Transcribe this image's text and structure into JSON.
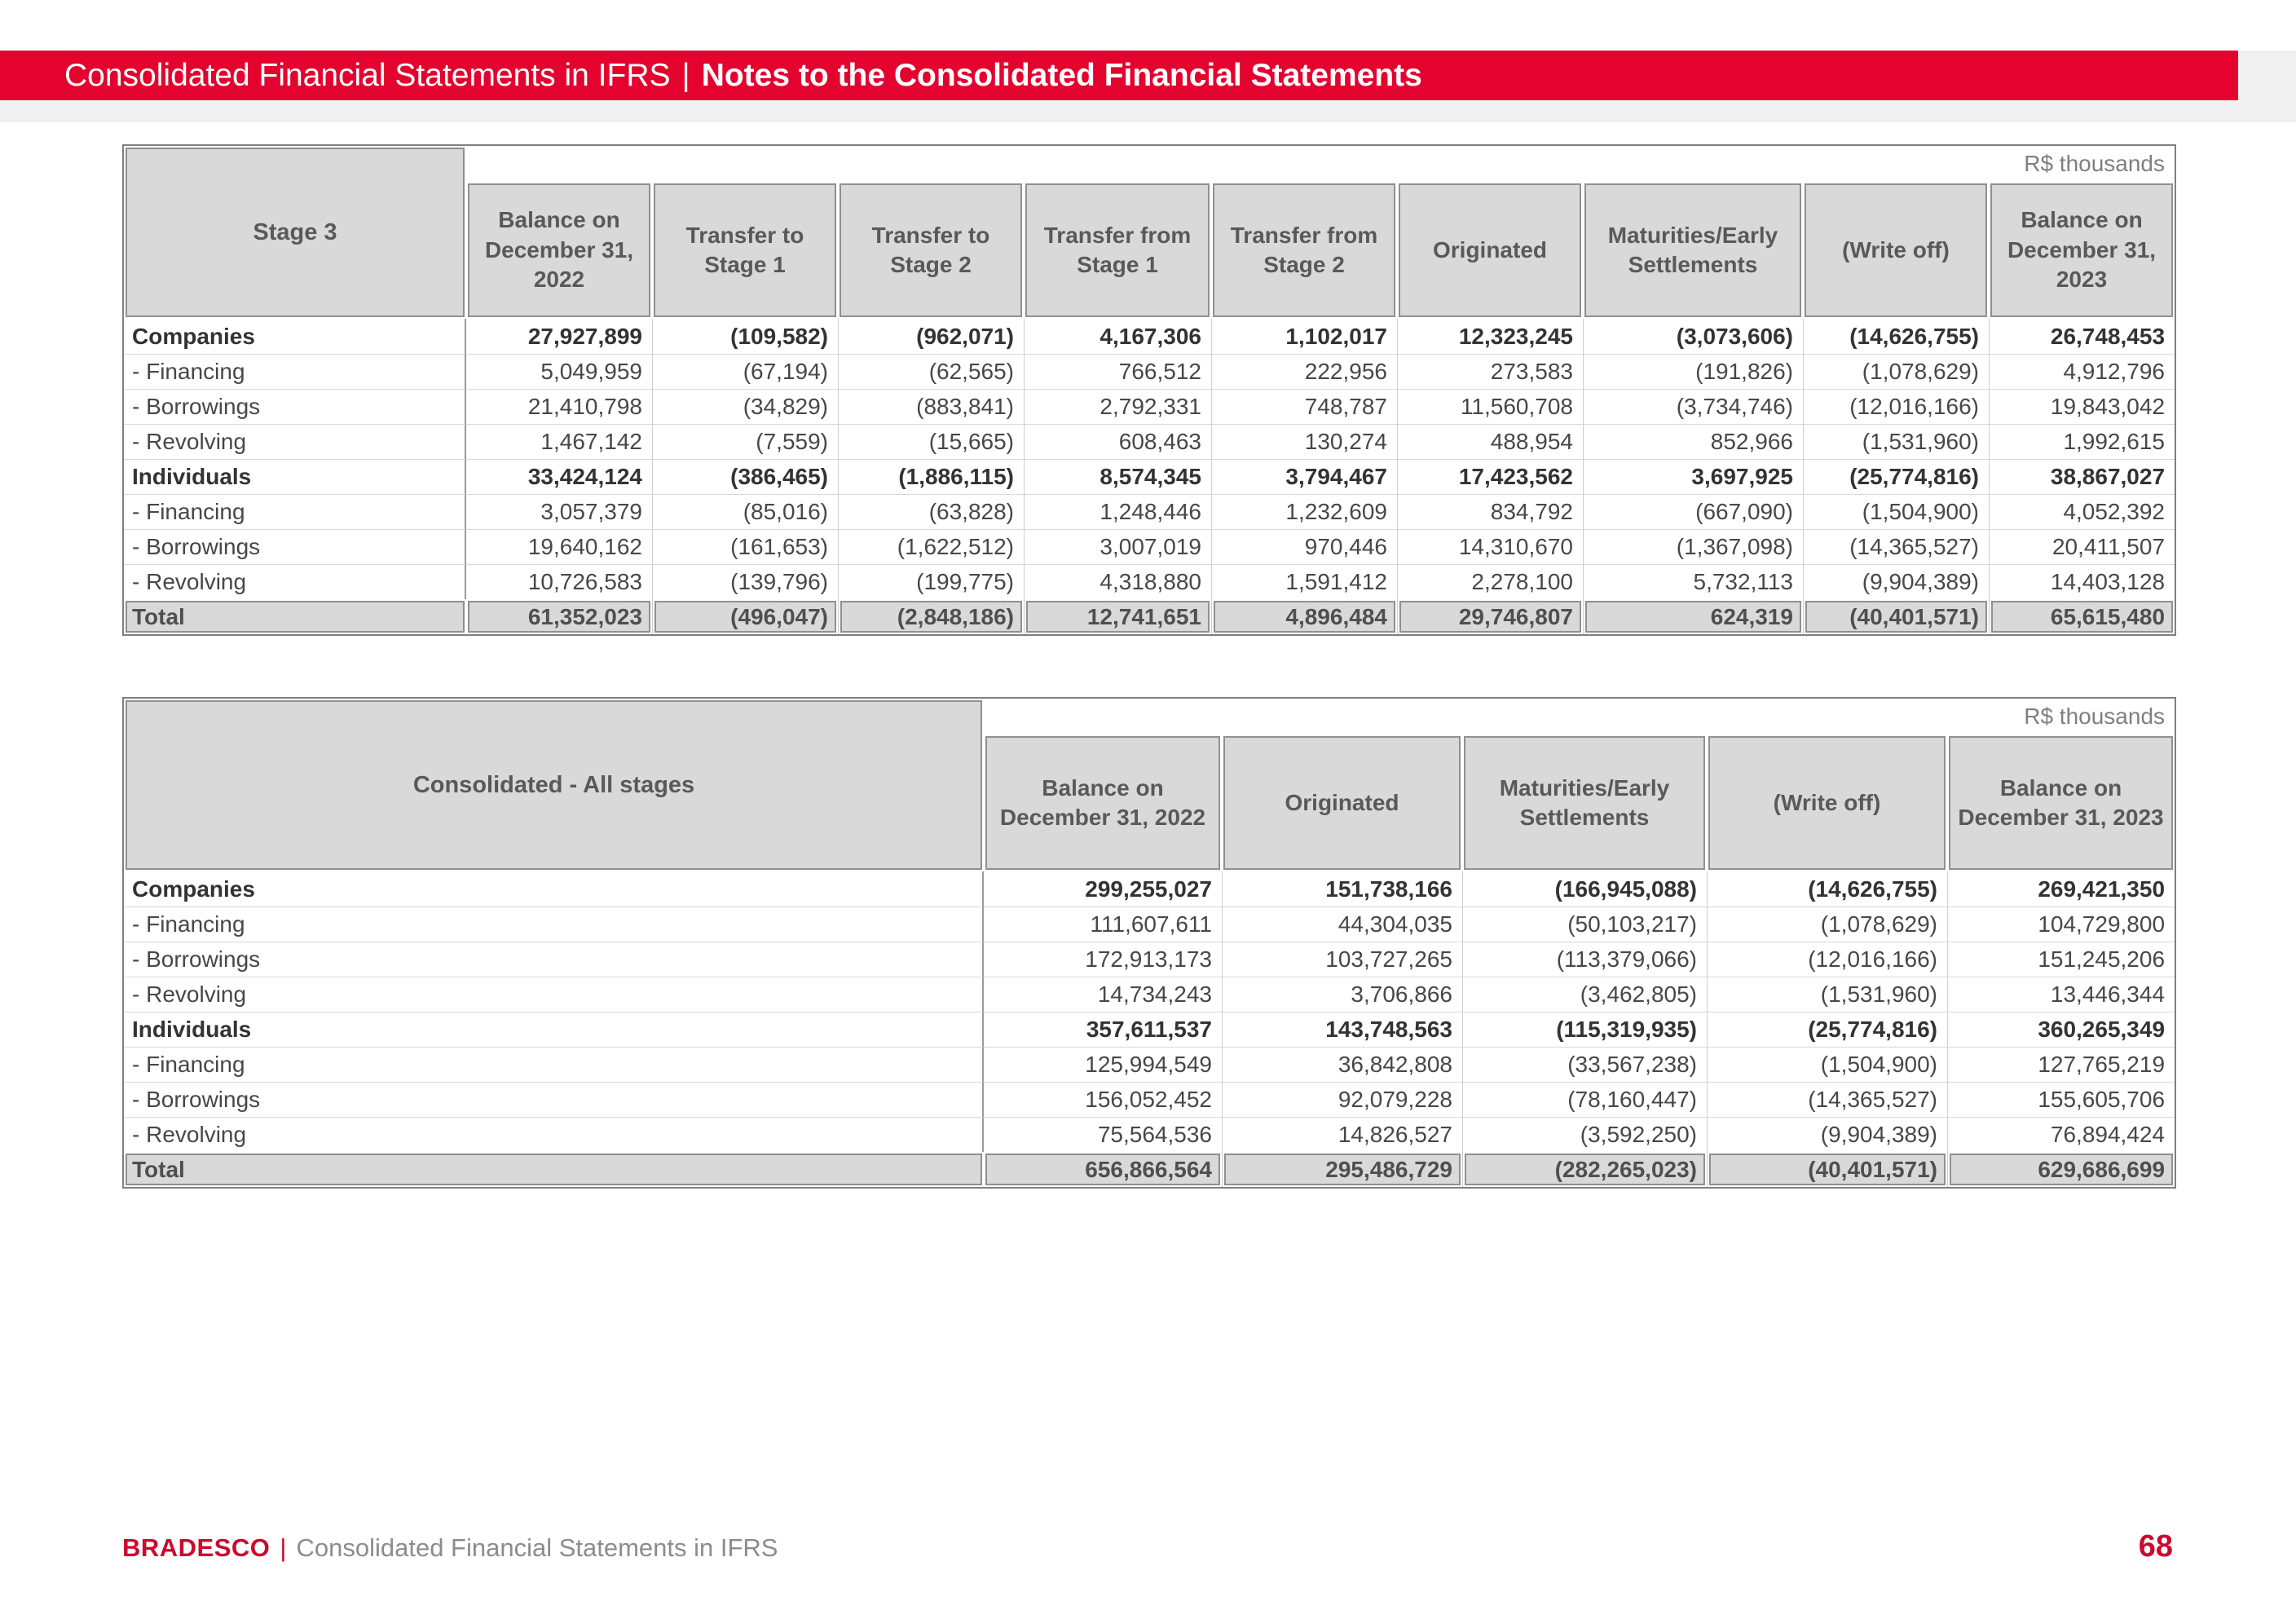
{
  "banner": {
    "left": "Consolidated Financial Statements in IFRS",
    "divider": "|",
    "right": "Notes to the Consolidated Financial Statements"
  },
  "table1": {
    "corner": "Stage 3",
    "unit": "R$ thousands",
    "columns": [
      "Balance on December 31, 2022",
      "Transfer to Stage 1",
      "Transfer to Stage 2",
      "Transfer from Stage 1",
      "Transfer from Stage 2",
      "Originated",
      "Maturities/Early Settlements",
      "(Write off)",
      "Balance on December 31, 2023"
    ],
    "rows": [
      {
        "label": "Companies",
        "style": "group",
        "values": [
          "27,927,899",
          "(109,582)",
          "(962,071)",
          "4,167,306",
          "1,102,017",
          "12,323,245",
          "(3,073,606)",
          "(14,626,755)",
          "26,748,453"
        ]
      },
      {
        "label": "- Financing",
        "style": "sub",
        "values": [
          "5,049,959",
          "(67,194)",
          "(62,565)",
          "766,512",
          "222,956",
          "273,583",
          "(191,826)",
          "(1,078,629)",
          "4,912,796"
        ]
      },
      {
        "label": "- Borrowings",
        "style": "sub",
        "values": [
          "21,410,798",
          "(34,829)",
          "(883,841)",
          "2,792,331",
          "748,787",
          "11,560,708",
          "(3,734,746)",
          "(12,016,166)",
          "19,843,042"
        ]
      },
      {
        "label": "- Revolving",
        "style": "sub",
        "values": [
          "1,467,142",
          "(7,559)",
          "(15,665)",
          "608,463",
          "130,274",
          "488,954",
          "852,966",
          "(1,531,960)",
          "1,992,615"
        ]
      },
      {
        "label": "Individuals",
        "style": "group",
        "values": [
          "33,424,124",
          "(386,465)",
          "(1,886,115)",
          "8,574,345",
          "3,794,467",
          "17,423,562",
          "3,697,925",
          "(25,774,816)",
          "38,867,027"
        ]
      },
      {
        "label": "- Financing",
        "style": "sub",
        "values": [
          "3,057,379",
          "(85,016)",
          "(63,828)",
          "1,248,446",
          "1,232,609",
          "834,792",
          "(667,090)",
          "(1,504,900)",
          "4,052,392"
        ]
      },
      {
        "label": "- Borrowings",
        "style": "sub",
        "values": [
          "19,640,162",
          "(161,653)",
          "(1,622,512)",
          "3,007,019",
          "970,446",
          "14,310,670",
          "(1,367,098)",
          "(14,365,527)",
          "20,411,507"
        ]
      },
      {
        "label": "- Revolving",
        "style": "sub",
        "values": [
          "10,726,583",
          "(139,796)",
          "(199,775)",
          "4,318,880",
          "1,591,412",
          "2,278,100",
          "5,732,113",
          "(9,904,389)",
          "14,403,128"
        ]
      },
      {
        "label": "Total",
        "style": "total",
        "values": [
          "61,352,023",
          "(496,047)",
          "(2,848,186)",
          "12,741,651",
          "4,896,484",
          "29,746,807",
          "624,319",
          "(40,401,571)",
          "65,615,480"
        ]
      }
    ]
  },
  "table2": {
    "corner": "Consolidated - All stages",
    "unit": "R$ thousands",
    "columns": [
      "Balance on December 31, 2022",
      "Originated",
      "Maturities/Early Settlements",
      "(Write off)",
      "Balance on December 31, 2023"
    ],
    "rows": [
      {
        "label": "Companies",
        "style": "group",
        "values": [
          "299,255,027",
          "151,738,166",
          "(166,945,088)",
          "(14,626,755)",
          "269,421,350"
        ]
      },
      {
        "label": "- Financing",
        "style": "sub",
        "values": [
          "111,607,611",
          "44,304,035",
          "(50,103,217)",
          "(1,078,629)",
          "104,729,800"
        ]
      },
      {
        "label": "- Borrowings",
        "style": "sub",
        "values": [
          "172,913,173",
          "103,727,265",
          "(113,379,066)",
          "(12,016,166)",
          "151,245,206"
        ]
      },
      {
        "label": "- Revolving",
        "style": "sub",
        "values": [
          "14,734,243",
          "3,706,866",
          "(3,462,805)",
          "(1,531,960)",
          "13,446,344"
        ]
      },
      {
        "label": "Individuals",
        "style": "group",
        "values": [
          "357,611,537",
          "143,748,563",
          "(115,319,935)",
          "(25,774,816)",
          "360,265,349"
        ]
      },
      {
        "label": "- Financing",
        "style": "sub",
        "values": [
          "125,994,549",
          "36,842,808",
          "(33,567,238)",
          "(1,504,900)",
          "127,765,219"
        ]
      },
      {
        "label": "- Borrowings",
        "style": "sub",
        "values": [
          "156,052,452",
          "92,079,228",
          "(78,160,447)",
          "(14,365,527)",
          "155,605,706"
        ]
      },
      {
        "label": "- Revolving",
        "style": "sub",
        "values": [
          "75,564,536",
          "14,826,527",
          "(3,592,250)",
          "(9,904,389)",
          "76,894,424"
        ]
      },
      {
        "label": "Total",
        "style": "total",
        "values": [
          "656,866,564",
          "295,486,729",
          "(282,265,023)",
          "(40,401,571)",
          "629,686,699"
        ]
      }
    ]
  },
  "footer": {
    "brand": "BRADESCO",
    "divider": "|",
    "text": "Consolidated Financial Statements in IFRS",
    "page": "68"
  },
  "colors": {
    "banner_red": "#E4032E",
    "brand_red": "#CC092F",
    "header_fill": "#D9D9D9",
    "header_text": "#595959",
    "body_text": "#404040",
    "border_dark": "#7F7F7F",
    "border_light": "#CDCDCD",
    "band_gray": "#F0F0F0"
  }
}
